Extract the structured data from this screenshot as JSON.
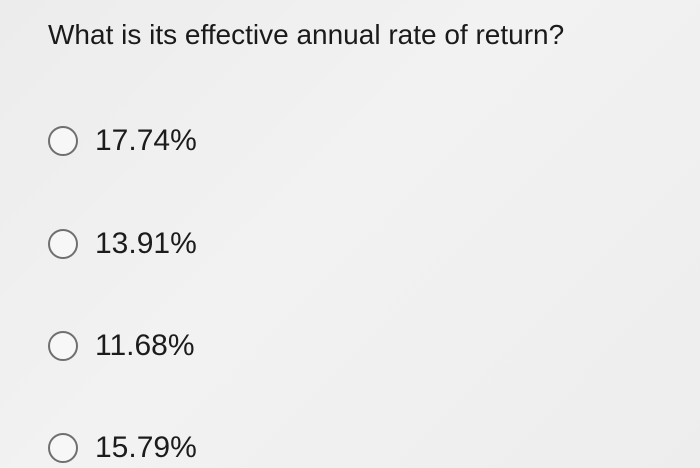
{
  "question": {
    "text": "What is its effective annual rate of return?"
  },
  "options": [
    {
      "label": "17.74%",
      "selected": false
    },
    {
      "label": "13.91%",
      "selected": false
    },
    {
      "label": "11.68%",
      "selected": false
    },
    {
      "label": "15.79%",
      "selected": false
    }
  ]
}
